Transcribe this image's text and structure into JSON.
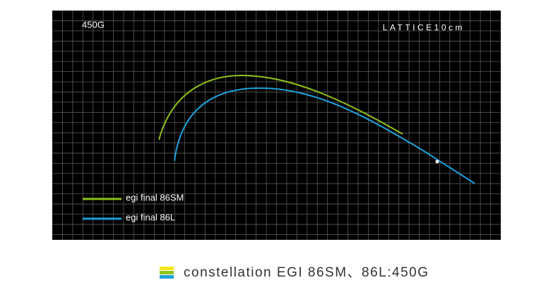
{
  "header": {
    "weight": "450G",
    "lattice": "LATTICE10cm"
  },
  "legend": [
    {
      "label": "egi final 86SM"
    },
    {
      "label": "egi final 86L"
    }
  ],
  "caption": "constellation EGI 86SM、86L:450G"
}
